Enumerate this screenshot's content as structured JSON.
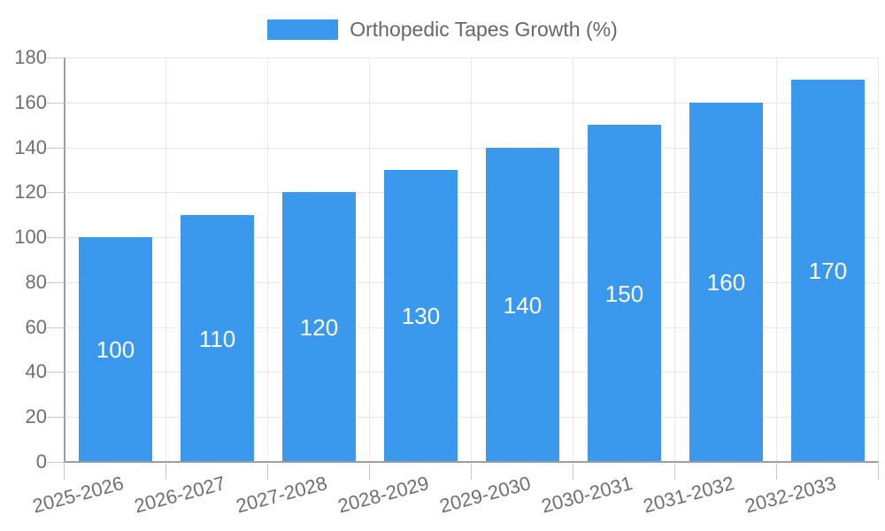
{
  "legend": {
    "label": "Orthopedic Tapes Growth (%)"
  },
  "colors": {
    "bar": "#3A99EC",
    "gridline": "#e6e6e6",
    "tick": "#c9c9c9",
    "axis_line": "#9e9e9e",
    "axis_text": "#6f6f6f",
    "legend_text": "#666666",
    "bar_label_text": "#ffffff"
  },
  "chart_data": {
    "type": "bar",
    "title": "",
    "categories": [
      "2025-2026",
      "2026-2027",
      "2027-2028",
      "2028-2029",
      "2029-2030",
      "2030-2031",
      "2031-2032",
      "2032-2033"
    ],
    "series": [
      {
        "name": "Orthopedic Tapes Growth (%)",
        "values": [
          100,
          110,
          120,
          130,
          140,
          150,
          160,
          170
        ]
      }
    ],
    "xlabel": "",
    "ylabel": "",
    "ylim": [
      0,
      180
    ],
    "ytick_step": 20,
    "yticks": [
      0,
      20,
      40,
      60,
      80,
      100,
      120,
      140,
      160,
      180
    ],
    "grid": true,
    "legend_position": "top-center",
    "value_labels": "inside-center",
    "x_tick_rotation_deg": -15
  }
}
